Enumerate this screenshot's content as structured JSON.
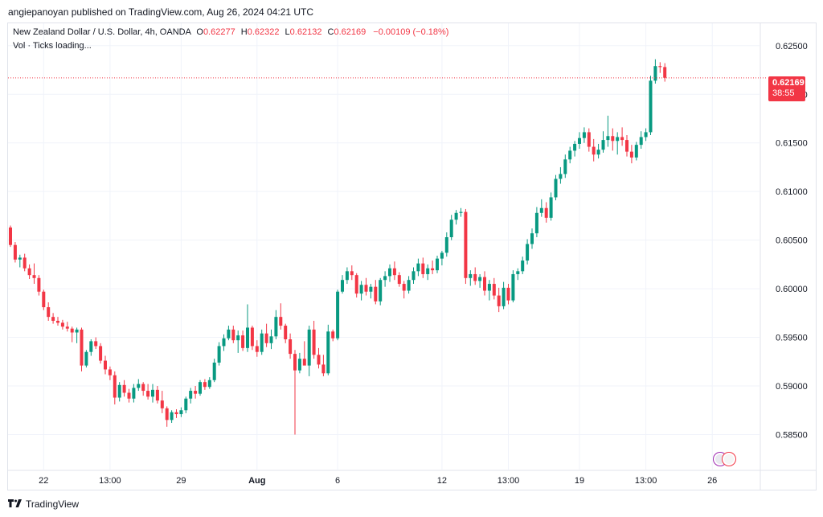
{
  "publisher": {
    "text": "angiepanoyan published on TradingView.com, Aug 26, 2024 04:21 UTC"
  },
  "legend": {
    "symbol": "New Zealand Dollar / U.S. Dollar, 4h, OANDA",
    "o_label": "O",
    "o": "0.62277",
    "h_label": "H",
    "h": "0.62322",
    "l_label": "L",
    "l": "0.62132",
    "c_label": "C",
    "c": "0.62169",
    "change": "−0.00109 (−0.18%)"
  },
  "volume": {
    "text": "Vol · Ticks loading..."
  },
  "price_tag": {
    "price": "0.62169",
    "countdown": "38:55"
  },
  "footer": {
    "brand": "TradingView"
  },
  "colors": {
    "up": "#089981",
    "down": "#f23645",
    "grid": "#f0f3fa",
    "axis_text": "#131722"
  },
  "chart_data": {
    "type": "candlestick",
    "y_ticks": [
      0.625,
      0.62,
      0.615,
      0.61,
      0.605,
      0.6,
      0.595,
      0.59,
      0.585
    ],
    "y_tick_labels": [
      "0.62500",
      "0.62000",
      "0.61500",
      "0.61000",
      "0.60500",
      "0.60000",
      "0.59500",
      "0.59000",
      "0.58500"
    ],
    "ylim": [
      0.5814,
      0.6273
    ],
    "x_ticks": [
      {
        "label": "22",
        "index": 7,
        "bold": false
      },
      {
        "label": "13:00",
        "index": 21,
        "bold": false
      },
      {
        "label": "29",
        "index": 36,
        "bold": false
      },
      {
        "label": "Aug",
        "index": 52,
        "bold": true
      },
      {
        "label": "6",
        "index": 69,
        "bold": false
      },
      {
        "label": "12",
        "index": 91,
        "bold": false
      },
      {
        "label": "13:00",
        "index": 105,
        "bold": false
      },
      {
        "label": "19",
        "index": 120,
        "bold": false
      },
      {
        "label": "13:00",
        "index": 134,
        "bold": false
      },
      {
        "label": "26",
        "index": 148,
        "bold": false
      }
    ],
    "last_price": 0.62169,
    "candles": [
      [
        0.6063,
        0.6065,
        0.6043,
        0.6045
      ],
      [
        0.6045,
        0.6048,
        0.6027,
        0.603
      ],
      [
        0.603,
        0.6035,
        0.6022,
        0.6032
      ],
      [
        0.6032,
        0.6036,
        0.6018,
        0.6021
      ],
      [
        0.6021,
        0.6025,
        0.601,
        0.6014
      ],
      [
        0.6014,
        0.6026,
        0.6005,
        0.6011
      ],
      [
        0.6011,
        0.6014,
        0.5993,
        0.5997
      ],
      [
        0.5997,
        0.5999,
        0.5978,
        0.5981
      ],
      [
        0.5981,
        0.5986,
        0.5967,
        0.5971
      ],
      [
        0.5971,
        0.5975,
        0.5964,
        0.5967
      ],
      [
        0.5967,
        0.5971,
        0.5962,
        0.5965
      ],
      [
        0.5965,
        0.5968,
        0.5958,
        0.5961
      ],
      [
        0.5961,
        0.5966,
        0.5956,
        0.5959
      ],
      [
        0.5959,
        0.5961,
        0.5945,
        0.5955
      ],
      [
        0.5955,
        0.596,
        0.5944,
        0.5958
      ],
      [
        0.5958,
        0.596,
        0.5915,
        0.5921
      ],
      [
        0.5921,
        0.5937,
        0.5919,
        0.5935
      ],
      [
        0.5935,
        0.5948,
        0.5931,
        0.5946
      ],
      [
        0.5946,
        0.595,
        0.5938,
        0.5941
      ],
      [
        0.5941,
        0.5944,
        0.5923,
        0.5926
      ],
      [
        0.5926,
        0.5931,
        0.5912,
        0.5917
      ],
      [
        0.5917,
        0.592,
        0.5906,
        0.5911
      ],
      [
        0.5911,
        0.5915,
        0.5881,
        0.5888
      ],
      [
        0.5888,
        0.5904,
        0.5884,
        0.5901
      ],
      [
        0.5901,
        0.5906,
        0.5889,
        0.5893
      ],
      [
        0.5893,
        0.5897,
        0.5883,
        0.5887
      ],
      [
        0.5887,
        0.5902,
        0.5883,
        0.5898
      ],
      [
        0.5898,
        0.5907,
        0.5895,
        0.5902
      ],
      [
        0.5902,
        0.5904,
        0.589,
        0.5895
      ],
      [
        0.5895,
        0.5902,
        0.5886,
        0.5889
      ],
      [
        0.5889,
        0.5902,
        0.5883,
        0.5896
      ],
      [
        0.5896,
        0.59,
        0.5882,
        0.5885
      ],
      [
        0.5885,
        0.5895,
        0.5872,
        0.5877
      ],
      [
        0.5877,
        0.5879,
        0.5858,
        0.5865
      ],
      [
        0.5865,
        0.5875,
        0.5862,
        0.5873
      ],
      [
        0.5873,
        0.5876,
        0.5867,
        0.5871
      ],
      [
        0.5871,
        0.5878,
        0.5868,
        0.5875
      ],
      [
        0.5875,
        0.5889,
        0.5872,
        0.5887
      ],
      [
        0.5887,
        0.5898,
        0.5882,
        0.5895
      ],
      [
        0.5895,
        0.59,
        0.5887,
        0.5892
      ],
      [
        0.5892,
        0.5906,
        0.589,
        0.5904
      ],
      [
        0.5904,
        0.5907,
        0.5896,
        0.5899
      ],
      [
        0.5899,
        0.5909,
        0.5897,
        0.5906
      ],
      [
        0.5906,
        0.5928,
        0.5904,
        0.5924
      ],
      [
        0.5924,
        0.5945,
        0.5921,
        0.5941
      ],
      [
        0.5941,
        0.5953,
        0.5936,
        0.5949
      ],
      [
        0.5949,
        0.5962,
        0.5947,
        0.5958
      ],
      [
        0.5958,
        0.5962,
        0.5944,
        0.5947
      ],
      [
        0.5947,
        0.5957,
        0.5934,
        0.5952
      ],
      [
        0.5952,
        0.5957,
        0.5936,
        0.5939
      ],
      [
        0.5939,
        0.5984,
        0.5935,
        0.596
      ],
      [
        0.596,
        0.5962,
        0.5937,
        0.5941
      ],
      [
        0.5941,
        0.5947,
        0.593,
        0.5935
      ],
      [
        0.5935,
        0.5958,
        0.5932,
        0.5954
      ],
      [
        0.5954,
        0.5964,
        0.594,
        0.5944
      ],
      [
        0.5944,
        0.5958,
        0.5938,
        0.5951
      ],
      [
        0.5951,
        0.5978,
        0.5948,
        0.5971
      ],
      [
        0.5971,
        0.5985,
        0.5958,
        0.5962
      ],
      [
        0.5962,
        0.5964,
        0.5944,
        0.5948
      ],
      [
        0.5948,
        0.5954,
        0.5928,
        0.5933
      ],
      [
        0.5933,
        0.5937,
        0.585,
        0.5916
      ],
      [
        0.5916,
        0.5934,
        0.5913,
        0.5928
      ],
      [
        0.5928,
        0.5946,
        0.5923,
        0.5921
      ],
      [
        0.5921,
        0.5962,
        0.591,
        0.5958
      ],
      [
        0.5958,
        0.5967,
        0.5928,
        0.5932
      ],
      [
        0.5932,
        0.5939,
        0.5918,
        0.5922
      ],
      [
        0.5922,
        0.5932,
        0.591,
        0.5913
      ],
      [
        0.5913,
        0.5963,
        0.5911,
        0.5956
      ],
      [
        0.5956,
        0.5958,
        0.5946,
        0.5949
      ],
      [
        0.5949,
        0.5999,
        0.5947,
        0.5997
      ],
      [
        0.5997,
        0.6014,
        0.5995,
        0.6009
      ],
      [
        0.6009,
        0.6022,
        0.6005,
        0.6018
      ],
      [
        0.6018,
        0.6024,
        0.6009,
        0.6014
      ],
      [
        0.6014,
        0.6016,
        0.5991,
        0.5995
      ],
      [
        0.5995,
        0.6008,
        0.5988,
        0.6004
      ],
      [
        0.6004,
        0.6011,
        0.5993,
        0.5997
      ],
      [
        0.5997,
        0.6005,
        0.599,
        0.6002
      ],
      [
        0.6002,
        0.6009,
        0.5984,
        0.5987
      ],
      [
        0.5987,
        0.6011,
        0.5983,
        0.6009
      ],
      [
        0.6009,
        0.6018,
        0.6002,
        0.6013
      ],
      [
        0.6013,
        0.6025,
        0.6007,
        0.6021
      ],
      [
        0.6021,
        0.6028,
        0.6009,
        0.6014
      ],
      [
        0.6014,
        0.6017,
        0.6002,
        0.6005
      ],
      [
        0.6005,
        0.6008,
        0.599,
        0.5998
      ],
      [
        0.5998,
        0.6013,
        0.5995,
        0.6009
      ],
      [
        0.6009,
        0.6022,
        0.6005,
        0.6018
      ],
      [
        0.6018,
        0.6031,
        0.6013,
        0.6026
      ],
      [
        0.6026,
        0.6032,
        0.6011,
        0.6015
      ],
      [
        0.6015,
        0.6025,
        0.6009,
        0.6021
      ],
      [
        0.6021,
        0.6029,
        0.6015,
        0.6019
      ],
      [
        0.6019,
        0.6034,
        0.6016,
        0.6031
      ],
      [
        0.6031,
        0.6039,
        0.6024,
        0.6037
      ],
      [
        0.6037,
        0.6058,
        0.6033,
        0.6053
      ],
      [
        0.6053,
        0.6076,
        0.605,
        0.6071
      ],
      [
        0.6071,
        0.6081,
        0.6066,
        0.6078
      ],
      [
        0.6078,
        0.6083,
        0.6074,
        0.6079
      ],
      [
        0.6079,
        0.6082,
        0.6005,
        0.6011
      ],
      [
        0.6011,
        0.6019,
        0.6003,
        0.6015
      ],
      [
        0.6015,
        0.6022,
        0.6004,
        0.6008
      ],
      [
        0.6008,
        0.6015,
        0.6001,
        0.6012
      ],
      [
        0.6012,
        0.6018,
        0.5993,
        0.5998
      ],
      [
        0.5998,
        0.6009,
        0.5988,
        0.6005
      ],
      [
        0.6005,
        0.6011,
        0.5989,
        0.5993
      ],
      [
        0.5993,
        0.6001,
        0.5976,
        0.5982
      ],
      [
        0.5982,
        0.6007,
        0.5979,
        0.6001
      ],
      [
        0.6001,
        0.6005,
        0.5984,
        0.5988
      ],
      [
        0.5988,
        0.6019,
        0.5986,
        0.6015
      ],
      [
        0.6015,
        0.6021,
        0.6009,
        0.6018
      ],
      [
        0.6018,
        0.6033,
        0.6015,
        0.6029
      ],
      [
        0.6029,
        0.6051,
        0.6025,
        0.6046
      ],
      [
        0.6046,
        0.6062,
        0.6041,
        0.6057
      ],
      [
        0.6057,
        0.6084,
        0.6053,
        0.6078
      ],
      [
        0.6078,
        0.6092,
        0.6074,
        0.6083
      ],
      [
        0.6083,
        0.6089,
        0.6068,
        0.6073
      ],
      [
        0.6073,
        0.6099,
        0.607,
        0.6094
      ],
      [
        0.6094,
        0.6117,
        0.6091,
        0.6113
      ],
      [
        0.6113,
        0.6125,
        0.6108,
        0.6118
      ],
      [
        0.6118,
        0.6138,
        0.6114,
        0.6133
      ],
      [
        0.6133,
        0.6146,
        0.6129,
        0.6142
      ],
      [
        0.6142,
        0.6152,
        0.6136,
        0.6149
      ],
      [
        0.6149,
        0.6161,
        0.6144,
        0.6155
      ],
      [
        0.6155,
        0.6166,
        0.615,
        0.6161
      ],
      [
        0.6161,
        0.6165,
        0.6141,
        0.6146
      ],
      [
        0.6146,
        0.6154,
        0.6131,
        0.6138
      ],
      [
        0.6138,
        0.6149,
        0.6134,
        0.6143
      ],
      [
        0.6143,
        0.6162,
        0.614,
        0.6153
      ],
      [
        0.6153,
        0.6178,
        0.6146,
        0.6157
      ],
      [
        0.6157,
        0.6165,
        0.6142,
        0.6152
      ],
      [
        0.6152,
        0.6161,
        0.6138,
        0.6156
      ],
      [
        0.6156,
        0.6166,
        0.6147,
        0.6153
      ],
      [
        0.6153,
        0.6158,
        0.6136,
        0.6141
      ],
      [
        0.6141,
        0.6148,
        0.6129,
        0.6135
      ],
      [
        0.6135,
        0.6151,
        0.6132,
        0.6148
      ],
      [
        0.6148,
        0.6162,
        0.6144,
        0.6156
      ],
      [
        0.6156,
        0.6165,
        0.6152,
        0.6161
      ],
      [
        0.6161,
        0.6219,
        0.6158,
        0.6214
      ],
      [
        0.6214,
        0.6236,
        0.6211,
        0.6229
      ],
      [
        0.6229,
        0.6233,
        0.6222,
        0.6228
      ],
      [
        0.6228,
        0.6232,
        0.6213,
        0.6217
      ]
    ]
  }
}
